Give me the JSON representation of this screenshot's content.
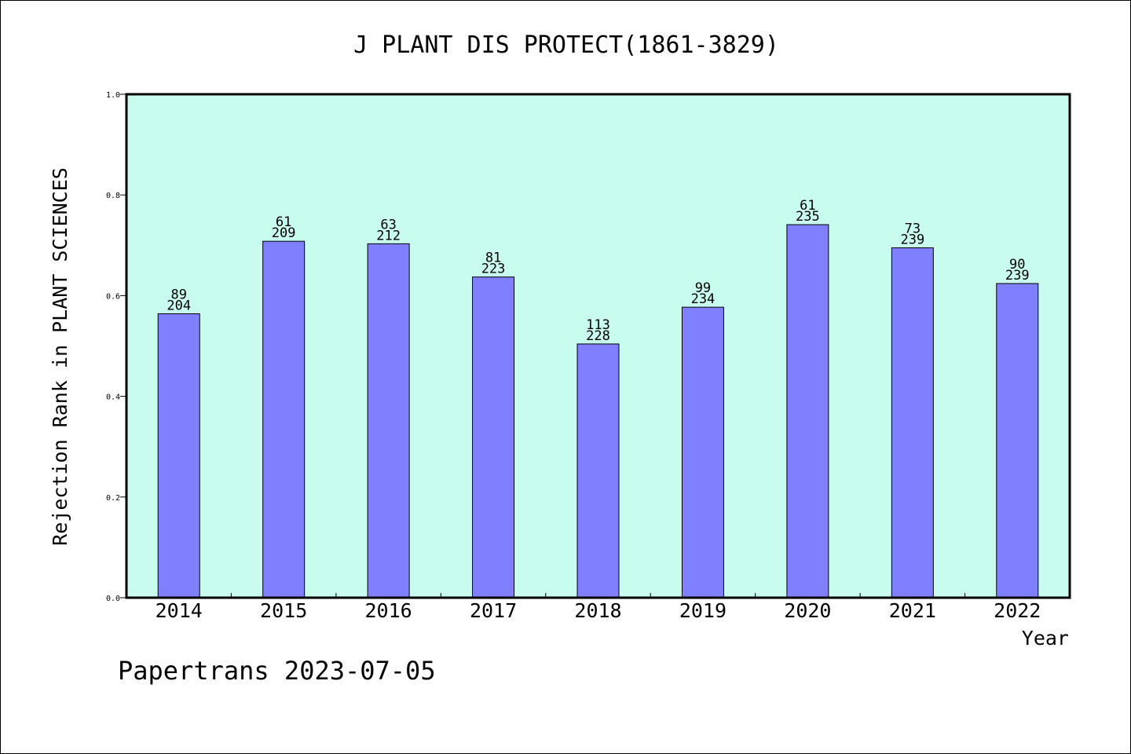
{
  "chart_data": {
    "type": "bar",
    "title": "J PLANT DIS PROTECT(1861-3829)",
    "xlabel": "Year",
    "ylabel": "Rejection Rank in PLANT SCIENCES",
    "categories": [
      "2014",
      "2015",
      "2016",
      "2017",
      "2018",
      "2019",
      "2020",
      "2021",
      "2022"
    ],
    "values": [
      0.564,
      0.708,
      0.703,
      0.637,
      0.504,
      0.577,
      0.741,
      0.695,
      0.624
    ],
    "rank": [
      "89",
      "61",
      "63",
      "81",
      "113",
      "99",
      "61",
      "73",
      "90"
    ],
    "total": [
      "204",
      "209",
      "212",
      "223",
      "228",
      "234",
      "235",
      "239",
      "239"
    ],
    "ylim": [
      0,
      1.0
    ],
    "yticks": [
      "0.0",
      "0.2",
      "0.4",
      "0.6",
      "0.8",
      "1.0"
    ],
    "grid": false,
    "colors": {
      "plot_background": "#c8fcee",
      "bar_fill": "#8080ff",
      "bar_stroke": "#000000"
    }
  },
  "footer": {
    "credit": "Papertrans 2023-07-05"
  }
}
